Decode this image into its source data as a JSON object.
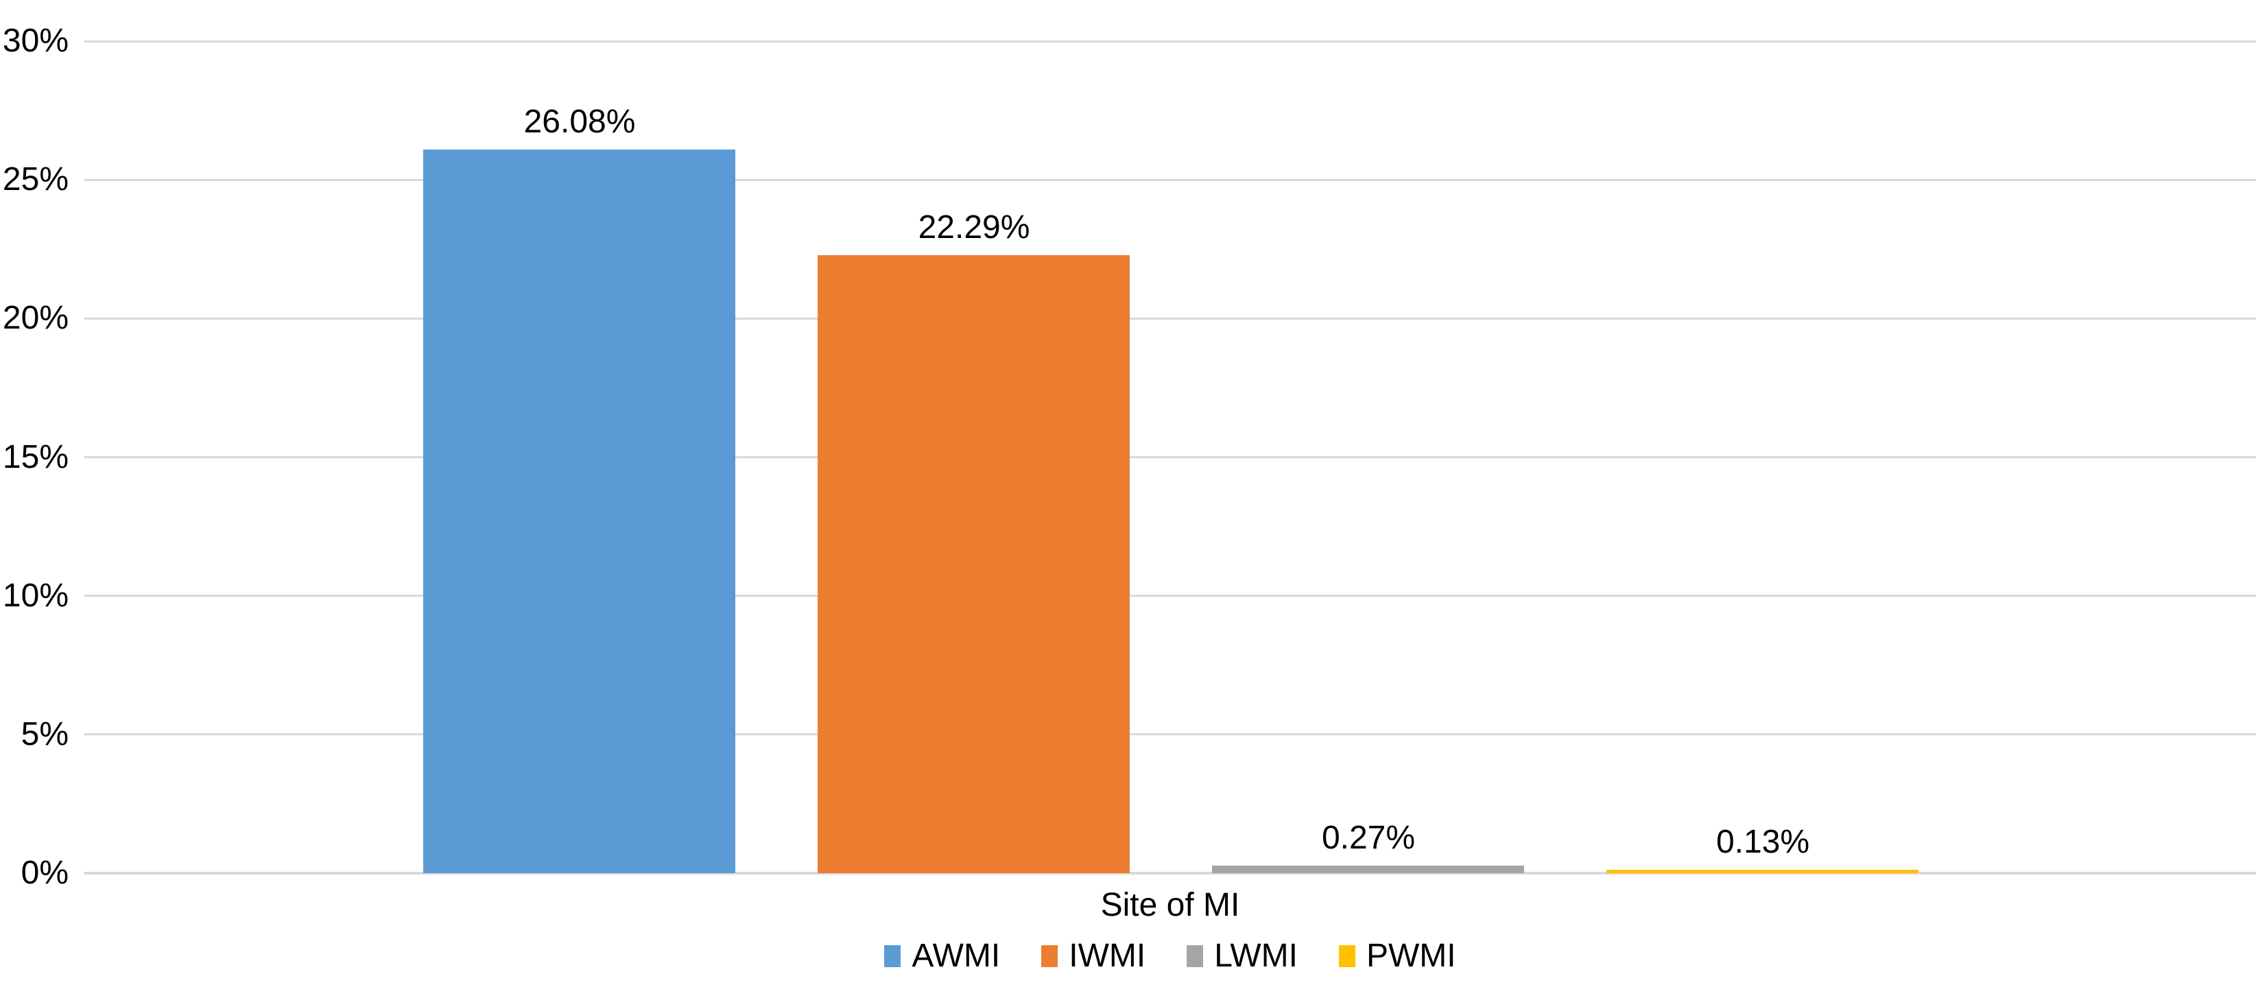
{
  "chart_data": {
    "type": "bar",
    "title": "",
    "xlabel": "Site of MI",
    "ylabel": "",
    "categories": [
      "Site of MI"
    ],
    "ylim": [
      0,
      30
    ],
    "yticks": [
      0,
      5,
      10,
      15,
      20,
      25,
      30
    ],
    "ytick_labels": [
      "0%",
      "5%",
      "10%",
      "15%",
      "20%",
      "25%",
      "30%"
    ],
    "grid": true,
    "legend_position": "bottom",
    "series": [
      {
        "name": "AWMI",
        "value": 26.08,
        "label": "26.08%",
        "color": "#5B9BD5"
      },
      {
        "name": "IWMI",
        "value": 22.29,
        "label": "22.29%",
        "color": "#ED7D31"
      },
      {
        "name": "LWMI",
        "value": 0.27,
        "label": "0.27%",
        "color": "#A5A5A5"
      },
      {
        "name": "PWMI",
        "value": 0.13,
        "label": "0.13%",
        "color": "#FFC000"
      }
    ],
    "styles": {
      "gridline_color": "#D9D9D9",
      "axis_line_color": "#D9D9D9",
      "text_color": "#000000",
      "background": "#FFFFFF"
    }
  }
}
